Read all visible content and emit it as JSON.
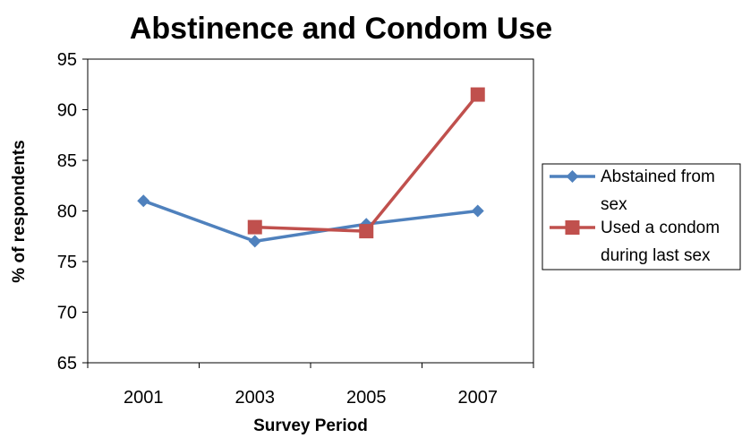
{
  "chart_data": {
    "type": "line",
    "title": "Abstinence and Condom Use",
    "xlabel": "Survey Period",
    "ylabel": "% of respondents",
    "categories": [
      "2001",
      "2003",
      "2005",
      "2007"
    ],
    "ylim": [
      65,
      95
    ],
    "yticks": [
      65,
      70,
      75,
      80,
      85,
      90,
      95
    ],
    "grid": false,
    "legend_position": "right",
    "series": [
      {
        "name": "Abstained from sex",
        "legend_lines": [
          "Abstained from",
          "sex"
        ],
        "values": [
          81,
          77,
          78.7,
          80
        ],
        "color": "#4f81bd",
        "marker": "diamond"
      },
      {
        "name": "Used a condom during last sex",
        "legend_lines": [
          "Used a condom",
          "during last sex"
        ],
        "values": [
          null,
          78.4,
          78,
          91.5
        ],
        "color": "#c0504d",
        "marker": "square"
      }
    ]
  }
}
